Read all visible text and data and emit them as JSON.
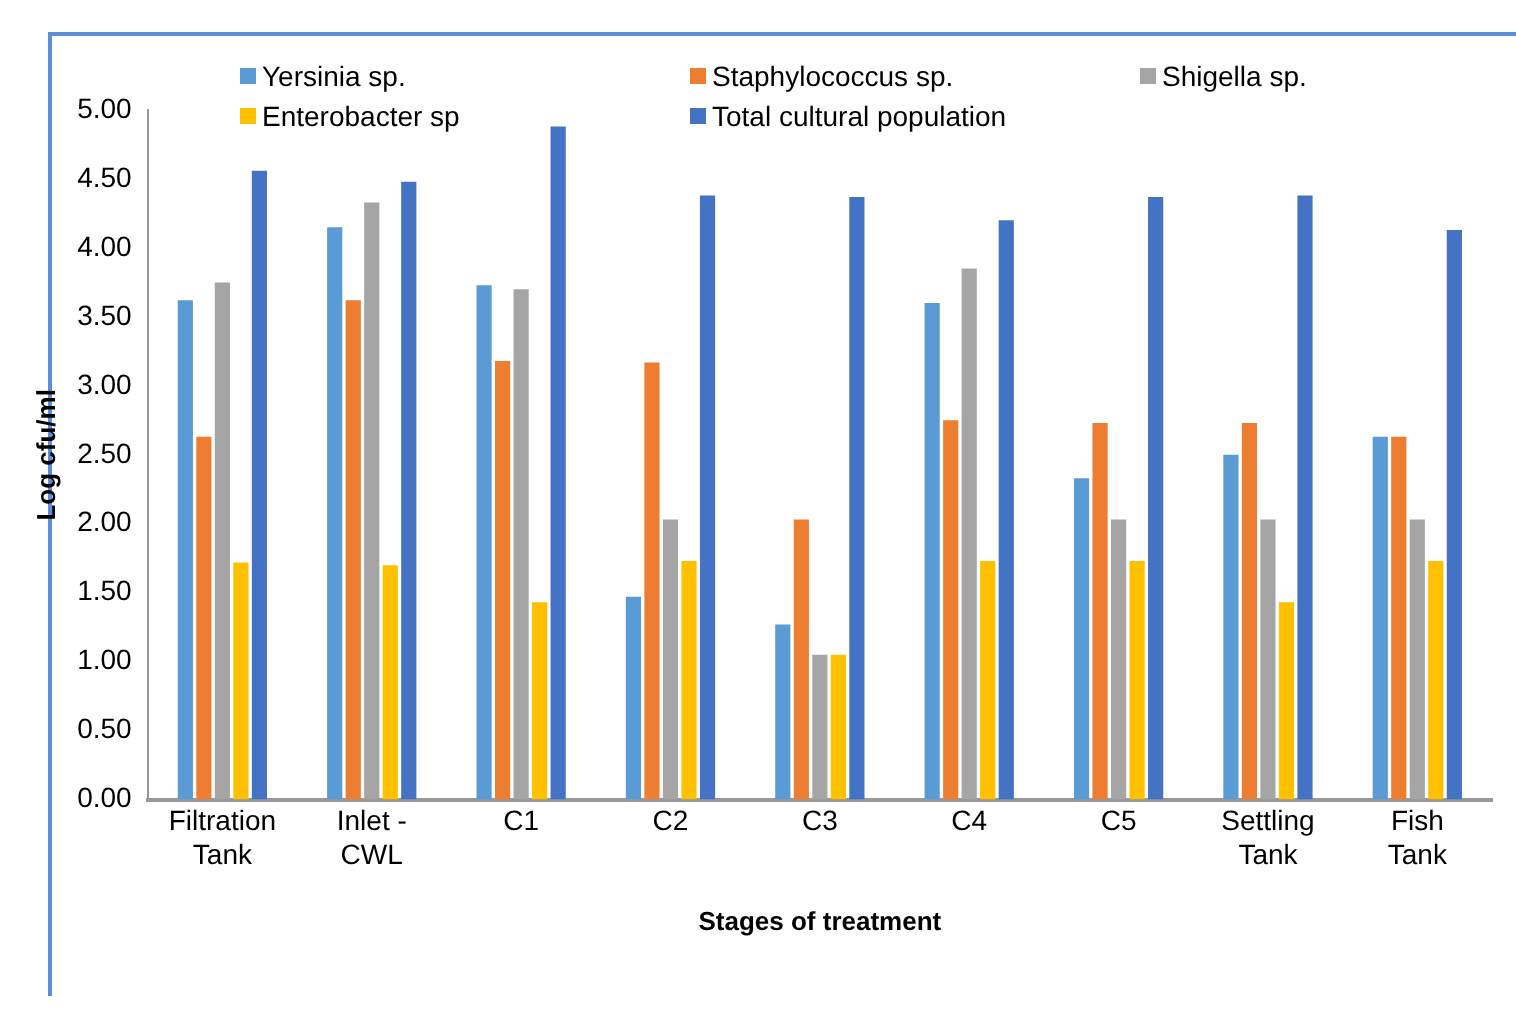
{
  "chart_data": {
    "type": "bar",
    "xlabel": "Stages of treatment",
    "ylabel": "Log cfu/ml",
    "categories": [
      "Filtration Tank",
      "Inlet - CWL",
      "C1",
      "C2",
      "C3",
      "C4",
      "C5",
      "Settling Tank",
      "Fish Tank"
    ],
    "series": [
      {
        "name": "Yersinia sp.",
        "color": "#5b9bd5",
        "values": [
          3.62,
          4.15,
          3.73,
          1.47,
          1.27,
          3.6,
          2.33,
          2.5,
          2.63
        ]
      },
      {
        "name": "Staphylococcus sp.",
        "color": "#ed7d31",
        "values": [
          2.63,
          3.62,
          3.18,
          3.17,
          2.03,
          2.75,
          2.73,
          2.73,
          2.63
        ]
      },
      {
        "name": "Shigella sp.",
        "color": "#a5a5a5",
        "values": [
          3.75,
          4.33,
          3.7,
          2.03,
          1.05,
          3.85,
          2.03,
          2.03,
          2.03
        ]
      },
      {
        "name": "Enterobacter sp",
        "color": "#ffc000",
        "values": [
          1.72,
          1.7,
          1.43,
          1.73,
          1.05,
          1.73,
          1.73,
          1.43,
          1.73
        ]
      },
      {
        "name": "Total cultural population",
        "color": "#4472c4",
        "values": [
          4.56,
          4.48,
          4.88,
          4.38,
          4.37,
          4.2,
          4.37,
          4.38,
          4.13
        ]
      }
    ],
    "ylim": [
      0,
      5
    ],
    "yticks": [
      {
        "value": 0,
        "label": "0.00"
      },
      {
        "value": 0.5,
        "label": "0.50"
      },
      {
        "value": 1,
        "label": "1.00"
      },
      {
        "value": 1.5,
        "label": "1.50"
      },
      {
        "value": 2,
        "label": "2.00"
      },
      {
        "value": 2.5,
        "label": "2.50"
      },
      {
        "value": 3,
        "label": "3.00"
      },
      {
        "value": 3.5,
        "label": "3.50"
      },
      {
        "value": 4,
        "label": "4.00"
      },
      {
        "value": 4.5,
        "label": "4.50"
      },
      {
        "value": 5,
        "label": "5.00"
      }
    ],
    "grid": false,
    "legend": "top"
  }
}
